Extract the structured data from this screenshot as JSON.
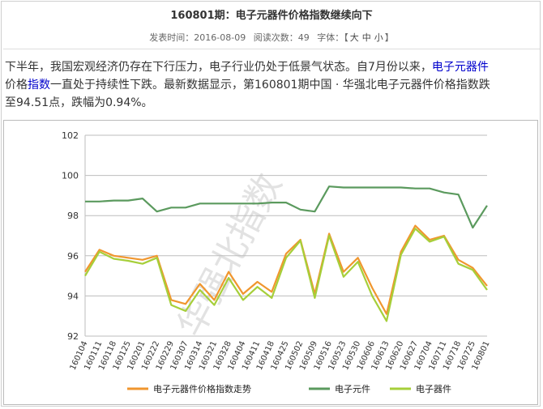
{
  "article": {
    "title": "160801期：电子元器件价格指数继续向下",
    "meta": {
      "publish_label": "发表时间：",
      "publish_date": "2016-08-09",
      "views_label": "阅读次数：",
      "views": "49",
      "font_label": "字体：",
      "bracket_open": "【",
      "size_large": "大",
      "size_medium": "中",
      "size_small": "小",
      "bracket_close": "】"
    },
    "paragraph": {
      "part1": "下半年，我国宏观经济仍存在下行压力，电子行业仍处于低景气状态。自7月份以来，",
      "link1": "电子元器件",
      "part2": "价格",
      "link2": "指数",
      "part3": "一直处于持续性下跌。最新数据显示，第160801期中国 · 华强北电子元器件价格指数跌至94.51点，跌幅为0.94%。"
    }
  },
  "watermark": "华强北指数",
  "colors": {
    "series1": "#f0962e",
    "series2": "#5b9a5e",
    "series3": "#a6cf3a",
    "link": "#0000cc"
  },
  "chart_data": {
    "type": "line",
    "categories": [
      "160104",
      "160111",
      "160118",
      "160125",
      "160201",
      "160222",
      "160229",
      "160307",
      "160314",
      "160321",
      "160328",
      "160404",
      "160411",
      "160418",
      "160425",
      "160502",
      "160509",
      "160516",
      "160523",
      "160530",
      "160606",
      "160613",
      "160620",
      "160627",
      "160704",
      "160711",
      "160718",
      "160725",
      "160801"
    ],
    "ylim": [
      92,
      102
    ],
    "yticks": [
      92,
      94,
      96,
      98,
      100,
      102
    ],
    "grid": true,
    "legend": "bottom",
    "series": [
      {
        "name": "电子元器件价格指数走势",
        "values": [
          95.2,
          96.3,
          96.0,
          95.9,
          95.8,
          96.0,
          93.8,
          93.6,
          94.6,
          93.8,
          95.2,
          94.1,
          94.7,
          94.2,
          96.1,
          96.8,
          94.1,
          97.1,
          95.2,
          95.9,
          94.4,
          93.1,
          96.2,
          97.5,
          96.8,
          97.0,
          95.8,
          95.4,
          94.5
        ]
      },
      {
        "name": "电子元件",
        "values": [
          98.7,
          98.7,
          98.75,
          98.75,
          98.85,
          98.2,
          98.4,
          98.4,
          98.6,
          98.6,
          98.6,
          98.6,
          98.6,
          98.65,
          98.65,
          98.3,
          98.2,
          99.45,
          99.4,
          99.4,
          99.4,
          99.4,
          99.4,
          99.35,
          99.35,
          99.15,
          99.05,
          97.4,
          98.5
        ]
      },
      {
        "name": "电子器件",
        "values": [
          95.0,
          96.2,
          95.85,
          95.75,
          95.6,
          95.9,
          93.55,
          93.25,
          94.3,
          93.55,
          94.9,
          93.8,
          94.45,
          93.9,
          95.9,
          96.75,
          93.9,
          97.0,
          94.95,
          95.7,
          94.0,
          92.75,
          96.05,
          97.35,
          96.7,
          96.95,
          95.6,
          95.3,
          94.3
        ]
      }
    ]
  }
}
